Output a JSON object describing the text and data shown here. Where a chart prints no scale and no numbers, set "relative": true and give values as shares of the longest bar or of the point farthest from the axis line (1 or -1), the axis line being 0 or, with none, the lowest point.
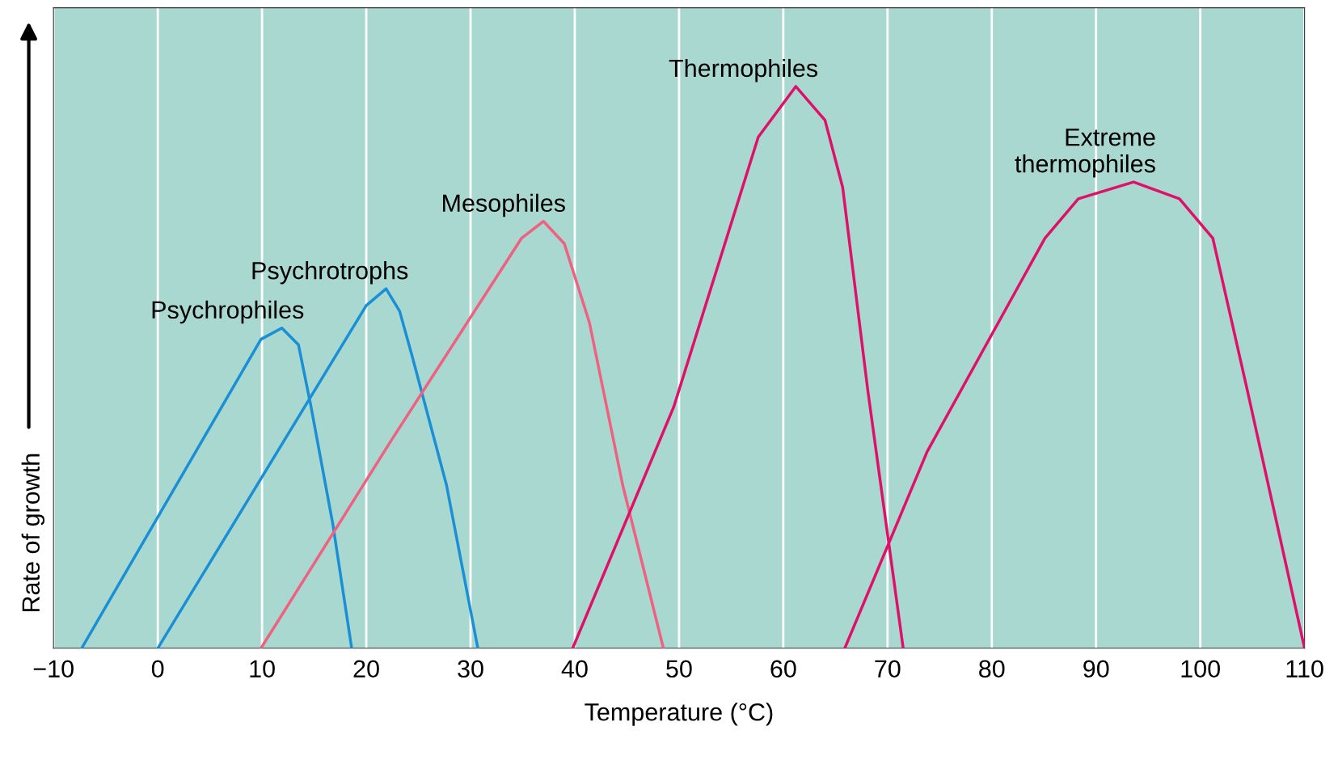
{
  "chart_data": {
    "type": "line",
    "relative": true,
    "xlabel": "Temperature (°C)",
    "ylabel": "Rate of growth",
    "xlim": [
      -10,
      110
    ],
    "xticks": [
      {
        "value": -10,
        "label": "−10"
      },
      0,
      10,
      20,
      30,
      40,
      50,
      60,
      70,
      80,
      90,
      100,
      110
    ],
    "grid": "x",
    "marker": "none",
    "line_style": "solid",
    "series": [
      {
        "name": "Psychrophiles",
        "color": "#1a8fd6",
        "x": [
          -7.3,
          9.9,
          11.9,
          13.5,
          14.7,
          16.8,
          18.6
        ],
        "values": [
          0,
          0.55,
          0.57,
          0.54,
          0.43,
          0.22,
          0
        ]
      },
      {
        "name": "Psychrotrophs",
        "color": "#1a8fd6",
        "x": [
          0,
          20.0,
          21.9,
          23.2,
          24.4,
          27.7,
          30.7
        ],
        "values": [
          0,
          0.61,
          0.64,
          0.6,
          0.52,
          0.29,
          0
        ]
      },
      {
        "name": "Mesophiles",
        "color": "#f06080",
        "x": [
          9.9,
          22.4,
          34.9,
          37.0,
          39.0,
          41.4,
          44.6,
          48.5
        ],
        "values": [
          0,
          0.37,
          0.73,
          0.76,
          0.72,
          0.58,
          0.29,
          0
        ]
      },
      {
        "name": "Thermophiles",
        "color": "#e0106a",
        "x": [
          39.8,
          49.5,
          57.6,
          61.2,
          64.0,
          65.7,
          68.1,
          71.5
        ],
        "values": [
          0,
          0.43,
          0.91,
          1.0,
          0.94,
          0.82,
          0.46,
          0
        ]
      },
      {
        "name": "Extreme\nthermophiles",
        "color": "#e0106a",
        "x": [
          65.9,
          73.8,
          85.1,
          88.3,
          93.6,
          98.0,
          101.2,
          104.5,
          110
        ],
        "values": [
          0,
          0.35,
          0.73,
          0.8,
          0.83,
          0.8,
          0.73,
          0.46,
          0
        ]
      }
    ]
  }
}
